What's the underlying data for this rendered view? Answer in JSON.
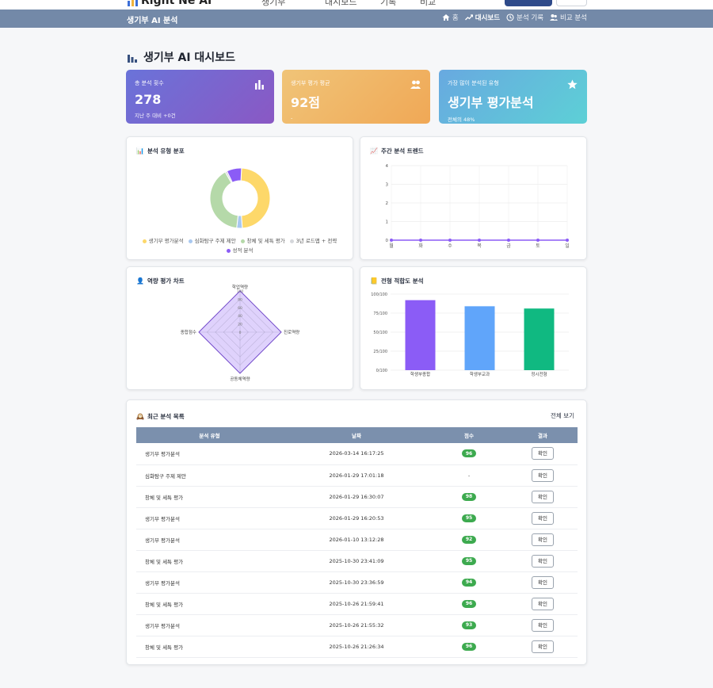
{
  "header": {
    "logo_text": "Right Ne AI",
    "nav_fragments": [
      "생기부",
      "대시보드",
      "기록",
      "비교"
    ]
  },
  "subnav": {
    "brand": "생기부 AI 분석",
    "items": [
      {
        "label": "홈",
        "icon": "home-icon"
      },
      {
        "label": "대시보드",
        "icon": "trend-icon"
      },
      {
        "label": "분석 기록",
        "icon": "history-icon"
      },
      {
        "label": "비교 분석",
        "icon": "users-icon"
      }
    ]
  },
  "page": {
    "title": "생기부 AI 대시보드"
  },
  "stats": [
    {
      "label": "총 분석 횟수",
      "value": "278",
      "sub": "지난 주 대비 +0건",
      "icon": "bar-chart-icon"
    },
    {
      "label": "생기부 평가 평균",
      "value": "92점",
      "sub": "-",
      "icon": "users-icon"
    },
    {
      "label": "가장 많이 분석된 유형",
      "value": "생기부 평가분석",
      "sub": "전체의 48%",
      "icon": "star-icon"
    }
  ],
  "panels": {
    "donut_title": "분석 유형 분포",
    "trend_title": "주간 분석 트렌드",
    "radar_title": "역량 평가 차트",
    "fit_title": "전형 적합도 분석"
  },
  "colors": {
    "accent": "#7b90ad",
    "score_green": "#3daa4f",
    "purple": "#8b5cf6",
    "blue": "#60a5fa",
    "green": "#10b981",
    "yellow": "#fdd86a",
    "light_blue": "#a9c8f0",
    "light_green": "#b5d9a9",
    "light_gray": "#d5d7db"
  },
  "chart_data": [
    {
      "type": "pie",
      "title": "분석 유형 분포",
      "categories": [
        "생기부 평가분석",
        "심화탐구 주제 제안",
        "창체 및 세특 평가",
        "3년 로드맵 + 전략",
        "성적 분석"
      ],
      "values": [
        48,
        3,
        40,
        1,
        8
      ],
      "colors": [
        "#fdd86a",
        "#a9c8f0",
        "#b5d9a9",
        "#d5d7db",
        "#8b5cf6"
      ],
      "donut": true,
      "legend": "bottom"
    },
    {
      "type": "line",
      "title": "주간 분석 트렌드",
      "categories": [
        "월",
        "화",
        "수",
        "목",
        "금",
        "토",
        "일"
      ],
      "values": [
        0,
        0,
        0,
        0,
        0,
        0,
        0
      ],
      "ylim": [
        0,
        4
      ],
      "yticks": [
        0,
        1,
        2,
        3,
        4
      ],
      "grid": true,
      "color": "#8b5cf6"
    },
    {
      "type": "radar",
      "title": "역량 평가 차트",
      "axes": [
        "학업역량",
        "진로역량",
        "공동체역량",
        "종합점수"
      ],
      "values": [
        100,
        100,
        100,
        100
      ],
      "rlim": [
        0,
        100
      ],
      "rticks": [
        "0",
        "20",
        "40",
        "60",
        "80",
        "100"
      ]
    },
    {
      "type": "bar",
      "title": "전형 적합도 분석",
      "categories": [
        "학생부종합",
        "학생부교과",
        "정시전형"
      ],
      "values": [
        92,
        84,
        81
      ],
      "colors": [
        "#8b5cf6",
        "#60a5fa",
        "#10b981"
      ],
      "ylim": [
        0,
        100
      ],
      "yticks": [
        "0/100",
        "25/100",
        "50/100",
        "75/100",
        "100/100"
      ],
      "grid": true
    }
  ],
  "recent": {
    "title": "최근 분석 목록",
    "view_all": "전체 보기",
    "columns": [
      "분석 유형",
      "날짜",
      "점수",
      "결과"
    ],
    "rows": [
      {
        "type": "생기부 평가분석",
        "date": "2026-03-14 16:17:25",
        "score": "96",
        "action": "확인"
      },
      {
        "type": "심화탐구 주제 제안",
        "date": "2026-01-29 17:01:18",
        "score": "-",
        "action": "확인"
      },
      {
        "type": "창체 및 세특 평가",
        "date": "2026-01-29 16:30:07",
        "score": "98",
        "action": "확인"
      },
      {
        "type": "생기부 평가분석",
        "date": "2026-01-29 16:20:53",
        "score": "95",
        "action": "확인"
      },
      {
        "type": "생기부 평가분석",
        "date": "2026-01-10 13:12:28",
        "score": "92",
        "action": "확인"
      },
      {
        "type": "창체 및 세특 평가",
        "date": "2025-10-30 23:41:09",
        "score": "95",
        "action": "확인"
      },
      {
        "type": "생기부 평가분석",
        "date": "2025-10-30 23:36:59",
        "score": "94",
        "action": "확인"
      },
      {
        "type": "창체 및 세특 평가",
        "date": "2025-10-26 21:59:41",
        "score": "96",
        "action": "확인"
      },
      {
        "type": "생기부 평가분석",
        "date": "2025-10-26 21:55:32",
        "score": "93",
        "action": "확인"
      },
      {
        "type": "창체 및 세특 평가",
        "date": "2025-10-26 21:26:34",
        "score": "96",
        "action": "확인"
      }
    ]
  }
}
